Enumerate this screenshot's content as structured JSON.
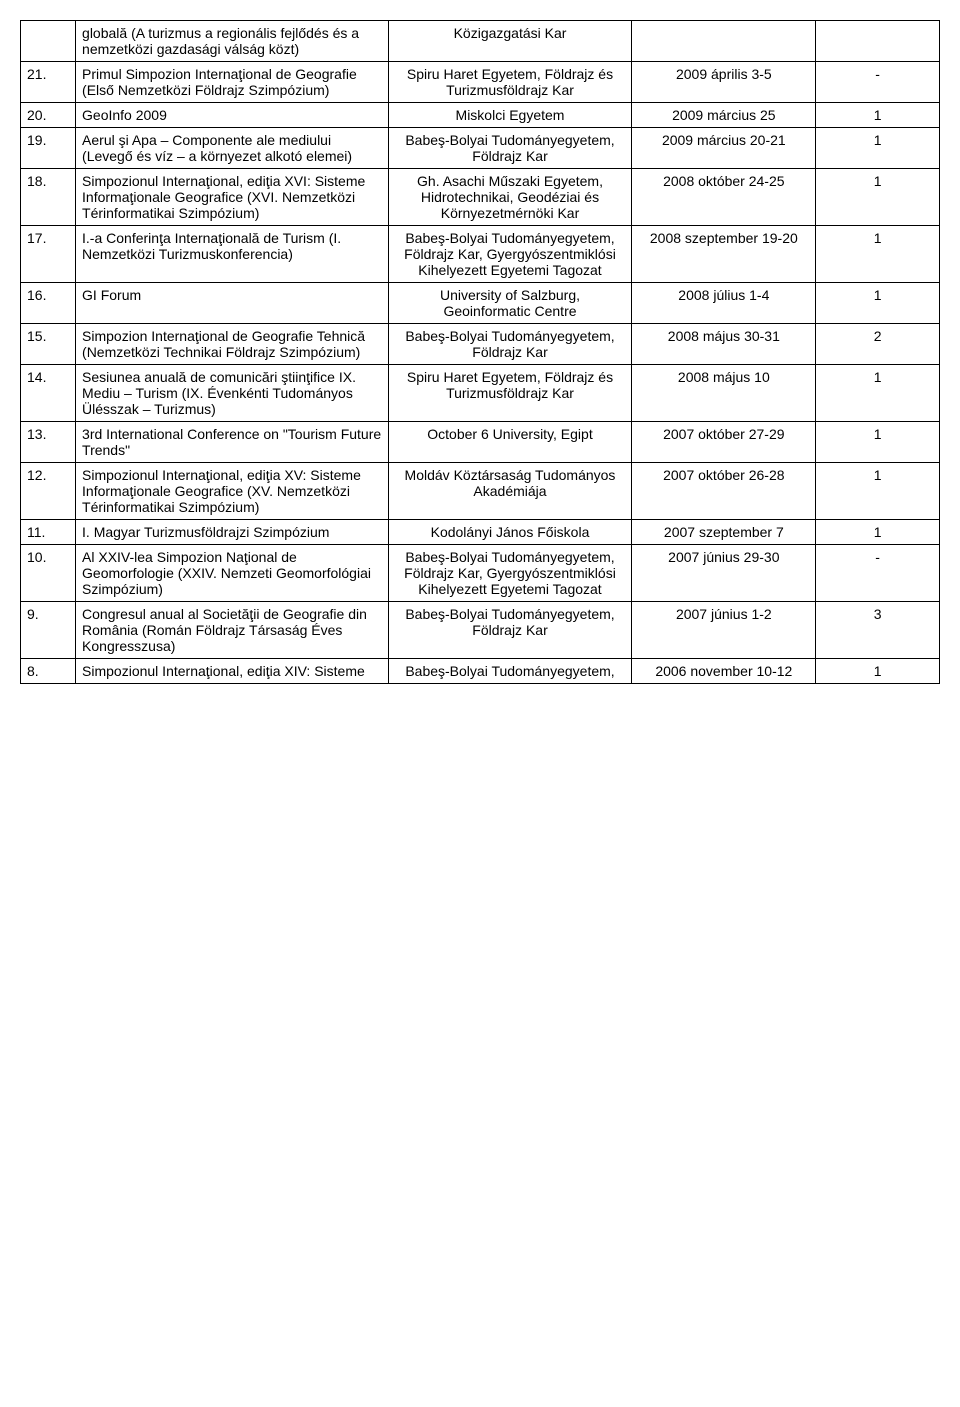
{
  "rows": [
    {
      "num": "",
      "title": "globală (A turizmus a regionális fejlődés és a nemzetközi gazdasági válság közt)",
      "venue": "Közigazgatási Kar",
      "date": "",
      "count": ""
    },
    {
      "num": "21.",
      "title": "Primul Simpozion Internaţional de Geografie (Első Nemzetközi Földrajz Szimpózium)",
      "venue": "Spiru Haret Egyetem, Földrajz és Turizmusföldrajz Kar",
      "date": "2009 április 3-5",
      "count": "-"
    },
    {
      "num": "20.",
      "title": "GeoInfo 2009",
      "venue": "Miskolci Egyetem",
      "date": "2009 március 25",
      "count": "1"
    },
    {
      "num": "19.",
      "title": "Aerul şi Apa – Componente ale mediului (Levegő és víz – a környezet alkotó elemei)",
      "venue": "Babeş-Bolyai Tudományegyetem, Földrajz Kar",
      "date": "2009 március 20-21",
      "count": "1"
    },
    {
      "num": "18.",
      "title": "Simpozionul Internaţional, ediţia XVI: Sisteme Informaţionale Geografice (XVI. Nemzetközi Térinformatikai Szimpózium)",
      "venue": "Gh. Asachi Műszaki Egyetem, Hidrotechnikai, Geodéziai és Környezetmérnöki Kar",
      "date": "2008 október 24-25",
      "count": "1"
    },
    {
      "num": "17.",
      "title": "I.-a Conferinţa Internaţională de Turism (I. Nemzetközi Turizmuskonferencia)",
      "venue": "Babeş-Bolyai Tudományegyetem, Földrajz Kar, Gyergyószentmiklósi Kihelyezett Egyetemi Tagozat",
      "date": "2008 szeptember 19-20",
      "count": "1"
    },
    {
      "num": "16.",
      "title": "GI Forum",
      "venue": "University of Salzburg, Geoinformatic Centre",
      "date": "2008 július 1-4",
      "count": "1"
    },
    {
      "num": "15.",
      "title": "Simpozion Internaţional de Geografie Tehnică (Nemzetközi Technikai Földrajz Szimpózium)",
      "venue": "Babeş-Bolyai Tudományegyetem, Földrajz Kar",
      "date": "2008 május 30-31",
      "count": "2"
    },
    {
      "num": "14.",
      "title": "Sesiunea anuală de comunicări ştiinţifice IX. Mediu – Turism (IX. Évenkénti Tudományos Ülésszak – Turizmus)",
      "venue": "Spiru Haret Egyetem, Földrajz és Turizmusföldrajz Kar",
      "date": "2008 május 10",
      "count": "1"
    },
    {
      "num": "13.",
      "title": "3rd International Conference on \"Tourism Future Trends\"",
      "venue": "October 6 University, Egipt",
      "date": "2007 október 27-29",
      "count": "1"
    },
    {
      "num": "12.",
      "title": "Simpozionul Internaţional, ediţia XV: Sisteme Informaţionale Geografice (XV. Nemzetközi Térinformatikai Szimpózium)",
      "venue": "Moldáv Köztársaság Tudományos Akadémiája",
      "date": "2007 október 26-28",
      "count": "1"
    },
    {
      "num": "11.",
      "title": "I. Magyar Turizmusföldrajzi Szimpózium",
      "venue": "Kodolányi János Főiskola",
      "date": "2007 szeptember 7",
      "count": "1"
    },
    {
      "num": "10.",
      "title": "Al XXIV-lea Simpozion Naţional de Geomorfologie (XXIV. Nemzeti Geomorfológiai Szimpózium)",
      "venue": "Babeş-Bolyai Tudományegyetem, Földrajz Kar, Gyergyószentmiklósi Kihelyezett Egyetemi Tagozat",
      "date": "2007 június 29-30",
      "count": "-"
    },
    {
      "num": "9.",
      "title": "Congresul anual al Societăţii de Geografie din România (Román Földrajz Társaság Éves Kongresszusa)",
      "venue": "Babeş-Bolyai Tudományegyetem, Földrajz Kar",
      "date": "2007 június 1-2",
      "count": "3"
    },
    {
      "num": "8.",
      "title": "Simpozionul Internaţional, ediţia XIV: Sisteme",
      "venue": "Babeş-Bolyai Tudományegyetem,",
      "date": "2006 november 10-12",
      "count": "1"
    }
  ]
}
